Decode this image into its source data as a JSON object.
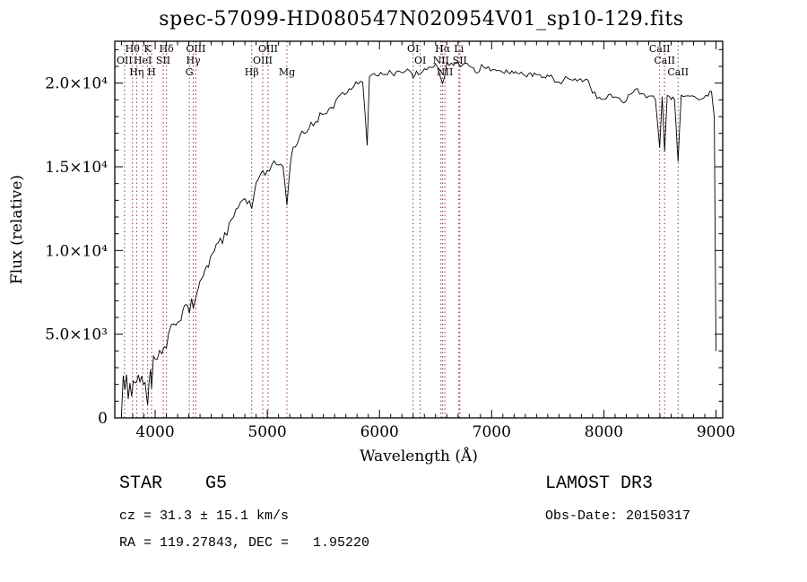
{
  "chart_data": {
    "type": "line",
    "title": "spec-57099-HD080547N020954V01_sp10-129.fits",
    "xlabel": "Wavelength (Å)",
    "ylabel": "Flux (relative)",
    "xlim": [
      3640,
      9060
    ],
    "ylim": [
      0,
      22500
    ],
    "x_minor_step": 100,
    "y_minor_step": 1000,
    "x_ticks": [
      {
        "v": 4000,
        "label": "4000"
      },
      {
        "v": 5000,
        "label": "5000"
      },
      {
        "v": 6000,
        "label": "6000"
      },
      {
        "v": 7000,
        "label": "7000"
      },
      {
        "v": 8000,
        "label": "8000"
      },
      {
        "v": 9000,
        "label": "9000"
      }
    ],
    "y_ticks": [
      {
        "v": 0,
        "label": "0"
      },
      {
        "v": 5000,
        "label": "5.0×10³"
      },
      {
        "v": 10000,
        "label": "1.0×10⁴"
      },
      {
        "v": 15000,
        "label": "1.5×10⁴"
      },
      {
        "v": 20000,
        "label": "2.0×10⁴"
      }
    ],
    "colors": {
      "spectrum": "#000000",
      "line_marker": "#993333"
    },
    "spectral_lines": [
      {
        "wavelength": 3727,
        "label": "OII",
        "row": 1
      },
      {
        "wavelength": 3798,
        "label": "Hθ",
        "row": 0
      },
      {
        "wavelength": 3835,
        "label": "Hη",
        "row": 2
      },
      {
        "wavelength": 3889,
        "label": "HeI",
        "row": 1
      },
      {
        "wavelength": 3933,
        "label": "K",
        "row": 0
      },
      {
        "wavelength": 3968,
        "label": "H",
        "row": 2
      },
      {
        "wavelength": 4072,
        "label": "SII",
        "row": 1
      },
      {
        "wavelength": 4101,
        "label": "Hδ",
        "row": 0
      },
      {
        "wavelength": 4305,
        "label": "G",
        "row": 2
      },
      {
        "wavelength": 4340,
        "label": "Hγ",
        "row": 1
      },
      {
        "wavelength": 4363,
        "label": "OIII",
        "row": 0
      },
      {
        "wavelength": 4861,
        "label": "Hβ",
        "row": 2
      },
      {
        "wavelength": 4959,
        "label": "OIII",
        "row": 1
      },
      {
        "wavelength": 5007,
        "label": "OIII",
        "row": 0
      },
      {
        "wavelength": 5175,
        "label": "Mg",
        "row": 2
      },
      {
        "wavelength": 6300,
        "label": "OI",
        "row": 0
      },
      {
        "wavelength": 6363,
        "label": "OI",
        "row": 1
      },
      {
        "wavelength": 6548,
        "label": "NII",
        "row": 1
      },
      {
        "wavelength": 6563,
        "label": "Hα",
        "row": 0
      },
      {
        "wavelength": 6583,
        "label": "NII",
        "row": 2
      },
      {
        "wavelength": 6708,
        "label": "Li",
        "row": 0
      },
      {
        "wavelength": 6716,
        "label": "SII",
        "row": 1
      },
      {
        "wavelength": 8498,
        "label": "CaII",
        "row": 0
      },
      {
        "wavelength": 8542,
        "label": "CaII",
        "row": 1
      },
      {
        "wavelength": 8662,
        "label": "CaII",
        "row": 2
      }
    ],
    "noise_profile": [
      {
        "x": 3700,
        "amp": 650
      },
      {
        "x": 4300,
        "amp": 380
      },
      {
        "x": 5000,
        "amp": 300
      },
      {
        "x": 5600,
        "amp": 220
      },
      {
        "x": 6500,
        "amp": 150
      },
      {
        "x": 7500,
        "amp": 130
      },
      {
        "x": 9000,
        "amp": 110
      }
    ],
    "points": [
      [
        3700,
        600
      ],
      [
        3715,
        2200
      ],
      [
        3730,
        1100
      ],
      [
        3745,
        2900
      ],
      [
        3760,
        1400
      ],
      [
        3775,
        2400
      ],
      [
        3790,
        1300
      ],
      [
        3805,
        2300
      ],
      [
        3820,
        1500
      ],
      [
        3835,
        1900
      ],
      [
        3850,
        2500
      ],
      [
        3865,
        1700
      ],
      [
        3880,
        2300
      ],
      [
        3895,
        1600
      ],
      [
        3910,
        2100
      ],
      [
        3925,
        1500
      ],
      [
        3933,
        1100
      ],
      [
        3945,
        2400
      ],
      [
        3960,
        2800
      ],
      [
        3968,
        2100
      ],
      [
        3985,
        3300
      ],
      [
        4000,
        3900
      ],
      [
        4020,
        3600
      ],
      [
        4040,
        4300
      ],
      [
        4060,
        3800
      ],
      [
        4080,
        4400
      ],
      [
        4101,
        3800
      ],
      [
        4120,
        4700
      ],
      [
        4145,
        5200
      ],
      [
        4170,
        5600
      ],
      [
        4200,
        5400
      ],
      [
        4230,
        6100
      ],
      [
        4260,
        6500
      ],
      [
        4290,
        6800
      ],
      [
        4305,
        6200
      ],
      [
        4325,
        6900
      ],
      [
        4340,
        6500
      ],
      [
        4360,
        7200
      ],
      [
        4385,
        7700
      ],
      [
        4415,
        8200
      ],
      [
        4445,
        8700
      ],
      [
        4475,
        9100
      ],
      [
        4510,
        9600
      ],
      [
        4545,
        10100
      ],
      [
        4580,
        10500
      ],
      [
        4620,
        11000
      ],
      [
        4660,
        11500
      ],
      [
        4700,
        12000
      ],
      [
        4740,
        12400
      ],
      [
        4780,
        12800
      ],
      [
        4820,
        13100
      ],
      [
        4861,
        12800
      ],
      [
        4900,
        13800
      ],
      [
        4940,
        14300
      ],
      [
        4980,
        14700
      ],
      [
        5020,
        15000
      ],
      [
        5060,
        15200
      ],
      [
        5100,
        15300
      ],
      [
        5140,
        14900
      ],
      [
        5175,
        12600
      ],
      [
        5210,
        15700
      ],
      [
        5250,
        16300
      ],
      [
        5290,
        16800
      ],
      [
        5330,
        17100
      ],
      [
        5370,
        17400
      ],
      [
        5410,
        17600
      ],
      [
        5450,
        17900
      ],
      [
        5490,
        18100
      ],
      [
        5530,
        18300
      ],
      [
        5570,
        18500
      ],
      [
        5610,
        18800
      ],
      [
        5650,
        19100
      ],
      [
        5690,
        19400
      ],
      [
        5730,
        19700
      ],
      [
        5770,
        19900
      ],
      [
        5810,
        20100
      ],
      [
        5850,
        20200
      ],
      [
        5890,
        16200
      ],
      [
        5910,
        20300
      ],
      [
        5950,
        20400
      ],
      [
        5990,
        20500
      ],
      [
        6030,
        20500
      ],
      [
        6070,
        20600
      ],
      [
        6110,
        20600
      ],
      [
        6150,
        20600
      ],
      [
        6190,
        20700
      ],
      [
        6230,
        20700
      ],
      [
        6270,
        20800
      ],
      [
        6300,
        20400
      ],
      [
        6330,
        20800
      ],
      [
        6363,
        20500
      ],
      [
        6400,
        20900
      ],
      [
        6440,
        21000
      ],
      [
        6480,
        21000
      ],
      [
        6520,
        21000
      ],
      [
        6563,
        19900
      ],
      [
        6600,
        21100
      ],
      [
        6640,
        21200
      ],
      [
        6680,
        21200
      ],
      [
        6720,
        21100
      ],
      [
        6760,
        21100
      ],
      [
        6800,
        21000
      ],
      [
        6840,
        20900
      ],
      [
        6870,
        20500
      ],
      [
        6910,
        21000
      ],
      [
        6950,
        20900
      ],
      [
        6990,
        20800
      ],
      [
        7030,
        20800
      ],
      [
        7080,
        20700
      ],
      [
        7130,
        20700
      ],
      [
        7180,
        20600
      ],
      [
        7230,
        20600
      ],
      [
        7280,
        20500
      ],
      [
        7330,
        20500
      ],
      [
        7380,
        20500
      ],
      [
        7430,
        20400
      ],
      [
        7480,
        20400
      ],
      [
        7530,
        20400
      ],
      [
        7580,
        20000
      ],
      [
        7620,
        19900
      ],
      [
        7660,
        20300
      ],
      [
        7710,
        20300
      ],
      [
        7760,
        20200
      ],
      [
        7810,
        20200
      ],
      [
        7860,
        20100
      ],
      [
        7900,
        19500
      ],
      [
        7940,
        19200
      ],
      [
        7980,
        19000
      ],
      [
        8020,
        19100
      ],
      [
        8060,
        19300
      ],
      [
        8100,
        19200
      ],
      [
        8140,
        19000
      ],
      [
        8180,
        18900
      ],
      [
        8220,
        19200
      ],
      [
        8260,
        19500
      ],
      [
        8300,
        19600
      ],
      [
        8340,
        19300
      ],
      [
        8380,
        19200
      ],
      [
        8420,
        19200
      ],
      [
        8460,
        19100
      ],
      [
        8498,
        16200
      ],
      [
        8520,
        19200
      ],
      [
        8542,
        15800
      ],
      [
        8565,
        19200
      ],
      [
        8600,
        19100
      ],
      [
        8630,
        19100
      ],
      [
        8662,
        15400
      ],
      [
        8690,
        19300
      ],
      [
        8730,
        19300
      ],
      [
        8770,
        19200
      ],
      [
        8810,
        19100
      ],
      [
        8850,
        19000
      ],
      [
        8890,
        19100
      ],
      [
        8930,
        19300
      ],
      [
        8960,
        19600
      ],
      [
        8985,
        18000
      ],
      [
        9000,
        4000
      ]
    ]
  },
  "footer": {
    "class_line": "STAR    G5",
    "survey_line": "LAMOST DR3",
    "cz_line": "cz = 31.3 ± 15.1 km/s",
    "obs_date_line": "Obs-Date: 20150317",
    "ra_dec_line": "RA = 119.27843, DEC =   1.95220"
  }
}
